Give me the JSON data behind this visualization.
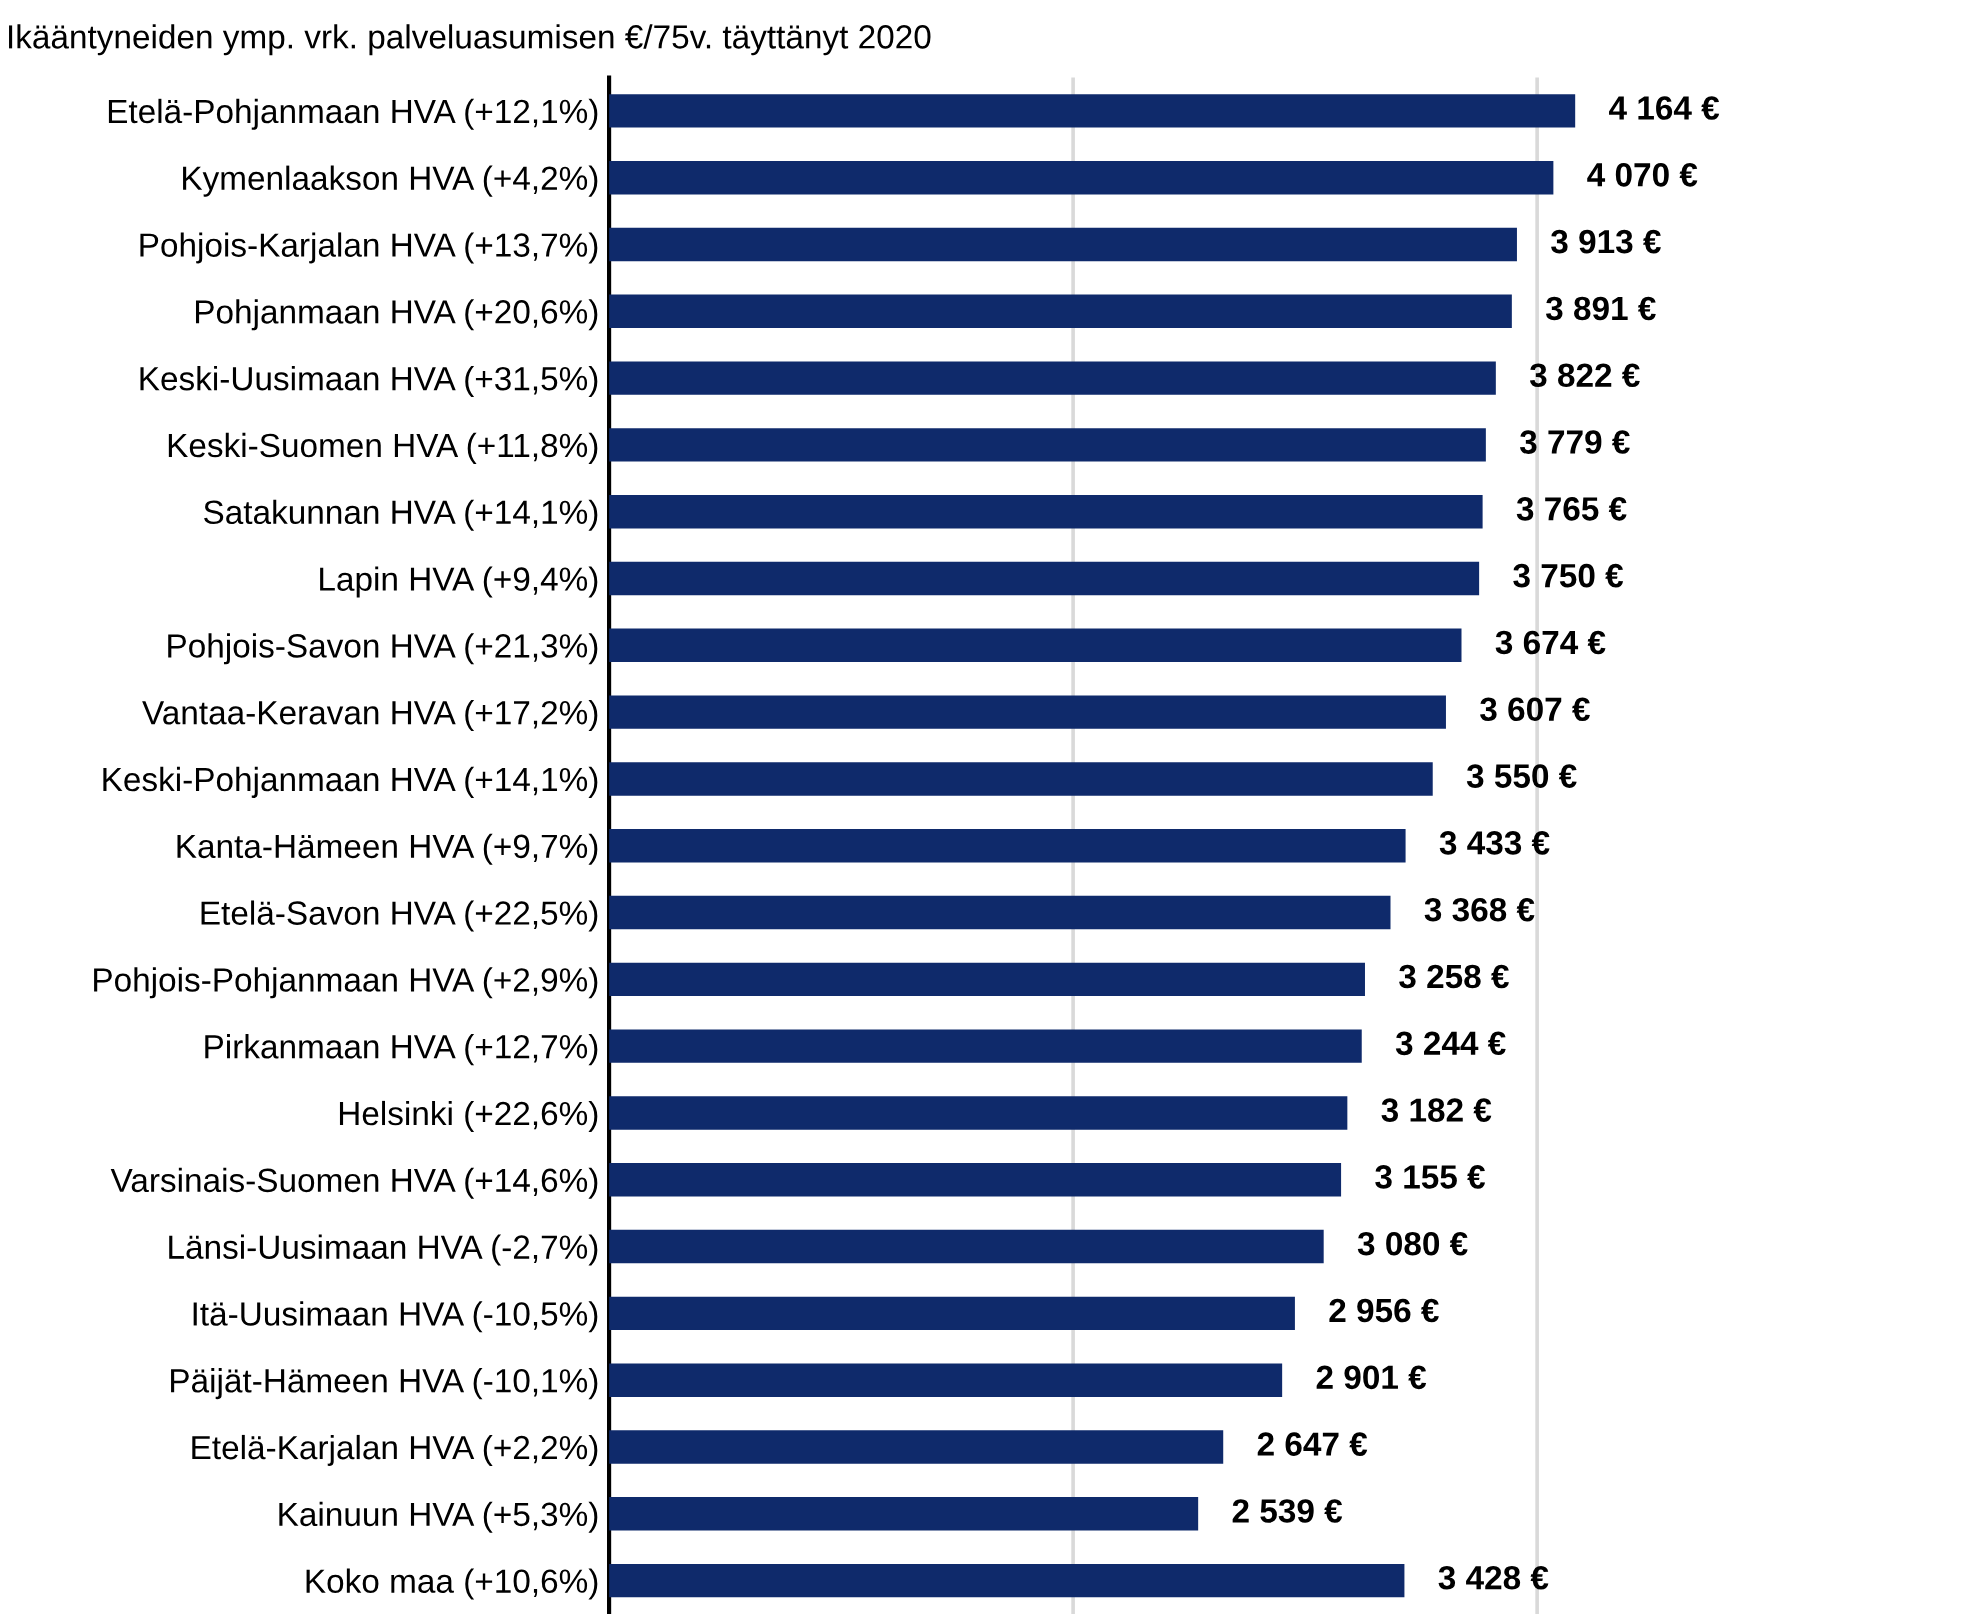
{
  "chart_data": {
    "type": "bar",
    "orientation": "horizontal",
    "title": "Ikääntyneiden ymp. vrk. palveluasumisen €/75v. täyttänyt 2020",
    "categories": [
      "Etelä-Pohjanmaan HVA (+12,1%)",
      "Kymenlaakson HVA (+4,2%)",
      "Pohjois-Karjalan HVA (+13,7%)",
      "Pohjanmaan HVA (+20,6%)",
      "Keski-Uusimaan HVA (+31,5%)",
      "Keski-Suomen HVA (+11,8%)",
      "Satakunnan HVA (+14,1%)",
      "Lapin HVA (+9,4%)",
      "Pohjois-Savon HVA (+21,3%)",
      "Vantaa-Keravan HVA (+17,2%)",
      "Keski-Pohjanmaan HVA (+14,1%)",
      "Kanta-Hämeen HVA (+9,7%)",
      "Etelä-Savon HVA (+22,5%)",
      "Pohjois-Pohjanmaan HVA (+2,9%)",
      "Pirkanmaan HVA (+12,7%)",
      "Helsinki (+22,6%)",
      "Varsinais-Suomen HVA (+14,6%)",
      "Länsi-Uusimaan HVA (-2,7%)",
      "Itä-Uusimaan HVA (-10,5%)",
      "Päijät-Hämeen HVA (-10,1%)",
      "Etelä-Karjalan HVA (+2,2%)",
      "Kainuun HVA (+5,3%)",
      "Koko maa (+10,6%)"
    ],
    "values": [
      4164,
      4070,
      3913,
      3891,
      3822,
      3779,
      3765,
      3750,
      3674,
      3607,
      3550,
      3433,
      3368,
      3258,
      3244,
      3182,
      3155,
      3080,
      2956,
      2901,
      2647,
      2539,
      3428
    ],
    "value_labels": [
      "4 164 €",
      "4 070 €",
      "3 913 €",
      "3 891 €",
      "3 822 €",
      "3 779 €",
      "3 765 €",
      "3 750 €",
      "3 674 €",
      "3 607 €",
      "3 550 €",
      "3 433 €",
      "3 368 €",
      "3 258 €",
      "3 244 €",
      "3 182 €",
      "3 155 €",
      "3 080 €",
      "2 956 €",
      "2 901 €",
      "2 647 €",
      "2 539 €",
      "3 428 €"
    ],
    "color": "#0f2a6b",
    "ref_lines": [
      {
        "axis": "x",
        "value": 2000,
        "color": "#d9d9d9"
      },
      {
        "axis": "x",
        "value": 4000,
        "color": "#d9d9d9"
      }
    ],
    "tick_labels": "y"
  }
}
